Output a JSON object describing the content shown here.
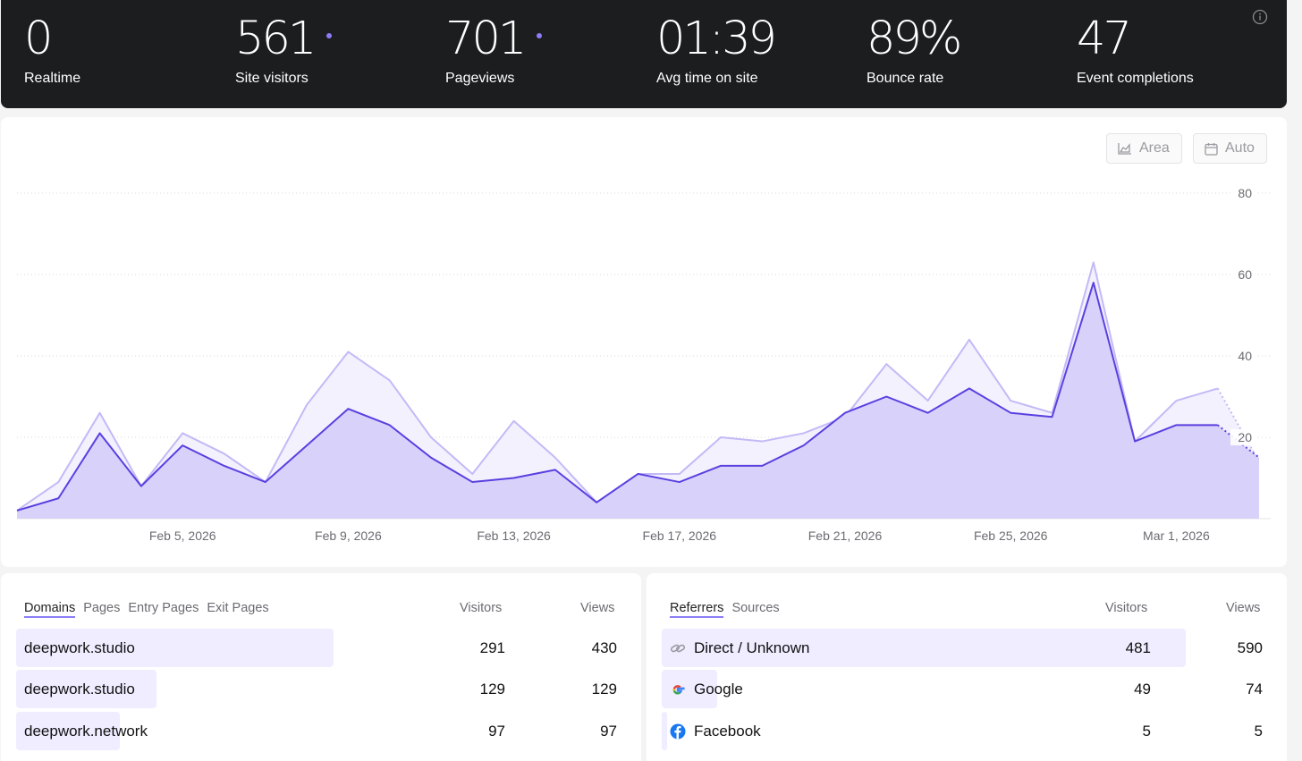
{
  "stats": [
    {
      "value": "0",
      "label": "Realtime",
      "dot": false
    },
    {
      "value": "561",
      "label": "Site visitors",
      "dot": true
    },
    {
      "value": "701",
      "label": "Pageviews",
      "dot": true
    },
    {
      "value": "01:39",
      "label": "Avg time on site",
      "dot": false
    },
    {
      "value": "89%",
      "label": "Bounce rate",
      "dot": false
    },
    {
      "value": "47",
      "label": "Event completions",
      "dot": false
    }
  ],
  "chart_controls": {
    "chart_type_label": "Area",
    "interval_label": "Auto"
  },
  "chart_data": {
    "type": "area",
    "x_tick_labels": [
      "Feb 5, 2026",
      "Feb 9, 2026",
      "Feb 13, 2026",
      "Feb 17, 2026",
      "Feb 21, 2026",
      "Feb 25, 2026",
      "Mar 1, 2026"
    ],
    "y_ticks": [
      20,
      40,
      60,
      80
    ],
    "ylim": [
      0,
      80
    ],
    "grid": true,
    "y_axis_position": "right",
    "x": [
      "Feb 1",
      "Feb 2",
      "Feb 3",
      "Feb 4",
      "Feb 5",
      "Feb 6",
      "Feb 7",
      "Feb 8",
      "Feb 9",
      "Feb 10",
      "Feb 11",
      "Feb 12",
      "Feb 13",
      "Feb 14",
      "Feb 15",
      "Feb 16",
      "Feb 17",
      "Feb 18",
      "Feb 19",
      "Feb 20",
      "Feb 21",
      "Feb 22",
      "Feb 23",
      "Feb 24",
      "Feb 25",
      "Feb 26",
      "Feb 27",
      "Feb 28",
      "Mar 1",
      "Mar 2",
      "Mar 3"
    ],
    "series": [
      {
        "values": [
          2,
          5,
          21,
          8,
          18,
          13,
          9,
          18,
          27,
          23,
          15,
          9,
          10,
          12,
          4,
          11,
          9,
          13,
          13,
          18,
          26,
          30,
          26,
          32,
          26,
          25,
          58,
          19,
          23,
          23,
          15
        ],
        "color": "#5b3fe0",
        "fill": "#d8d2fb"
      },
      {
        "values": [
          2,
          9,
          26,
          8,
          21,
          16,
          9,
          28,
          41,
          34,
          20,
          11,
          24,
          15,
          4,
          11,
          11,
          20,
          19,
          21,
          25,
          38,
          29,
          44,
          29,
          26,
          63,
          19,
          29,
          32,
          14
        ],
        "color": "#c4b9f7",
        "fill": "#f3f1fd"
      }
    ],
    "last_segment_style": "dotted"
  },
  "domains_panel": {
    "tabs": [
      "Domains",
      "Pages",
      "Entry Pages",
      "Exit Pages"
    ],
    "active_tab": 0,
    "columns": [
      "Visitors",
      "Views"
    ],
    "rows": [
      {
        "name": "deepwork.studio",
        "visitors": "291",
        "views": "430",
        "share": 1.0
      },
      {
        "name": "deepwork.studio",
        "visitors": "129",
        "views": "129",
        "share": 0.44
      },
      {
        "name": "deepwork.network",
        "visitors": "97",
        "views": "97",
        "share": 0.33
      }
    ]
  },
  "referrers_panel": {
    "tabs": [
      "Referrers",
      "Sources"
    ],
    "active_tab": 0,
    "columns": [
      "Visitors",
      "Views"
    ],
    "rows": [
      {
        "name": "Direct / Unknown",
        "icon": "link-icon",
        "visitors": "481",
        "views": "590",
        "share": 1.0
      },
      {
        "name": "Google",
        "icon": "google-icon",
        "visitors": "49",
        "views": "74",
        "share": 0.1
      },
      {
        "name": "Facebook",
        "icon": "facebook-icon",
        "visitors": "5",
        "views": "5",
        "share": 0.01
      }
    ]
  }
}
